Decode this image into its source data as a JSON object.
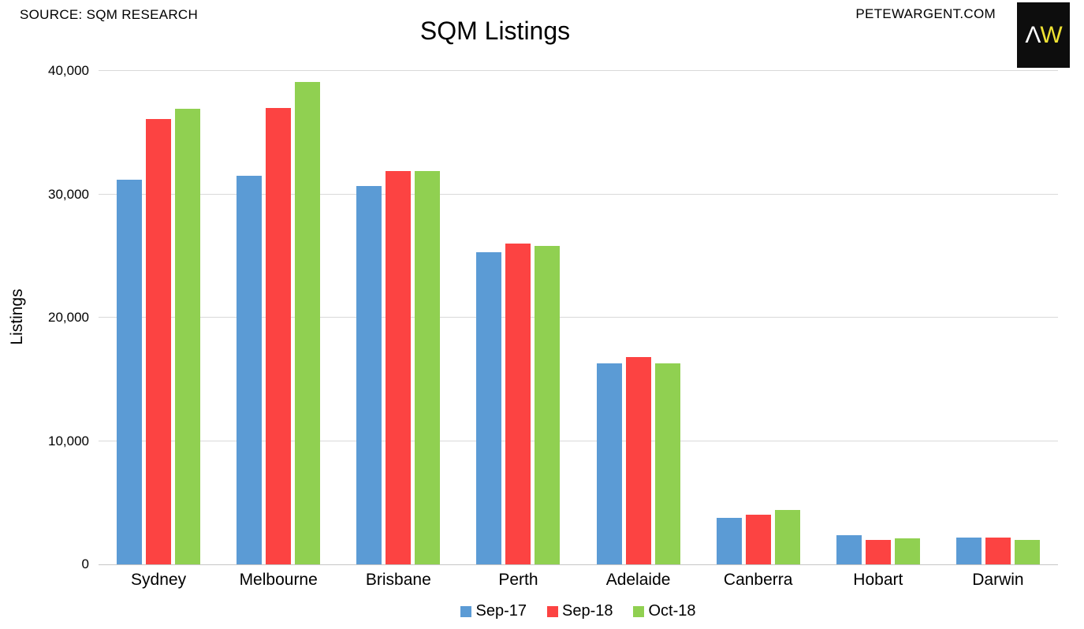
{
  "header": {
    "source_label": "SOURCE: SQM RESEARCH",
    "site_label": "PETEWARGENT.COM",
    "logo": {
      "letter_a": "Λ",
      "letter_w": "W",
      "background": "#0d0d0d",
      "letter_a_color": "#ffffff",
      "letter_w_color": "#efe233"
    }
  },
  "chart_data": {
    "type": "bar",
    "title": "SQM Listings",
    "xlabel": "",
    "ylabel": "Listings",
    "ylim": [
      0,
      40000
    ],
    "yticks": [
      0,
      10000,
      20000,
      30000,
      40000
    ],
    "ytick_labels": [
      "0",
      "10,000",
      "20,000",
      "30,000",
      "40,000"
    ],
    "grid": true,
    "legend_position": "bottom",
    "grid_color": "#d9d9d9",
    "axis_color": "#c6c6c6",
    "categories": [
      "Sydney",
      "Melbourne",
      "Brisbane",
      "Perth",
      "Adelaide",
      "Canberra",
      "Hobart",
      "Darwin"
    ],
    "series": [
      {
        "name": "Sep-17",
        "color": "#5B9BD5",
        "values": [
          31200,
          31500,
          30700,
          25300,
          16300,
          3750,
          2350,
          2150
        ]
      },
      {
        "name": "Sep-18",
        "color": "#FC4342",
        "values": [
          36100,
          37000,
          31900,
          26000,
          16800,
          4000,
          2000,
          2200
        ]
      },
      {
        "name": "Oct-18",
        "color": "#90D051",
        "values": [
          36950,
          39100,
          31900,
          25800,
          16300,
          4400,
          2100,
          2000
        ]
      }
    ]
  }
}
